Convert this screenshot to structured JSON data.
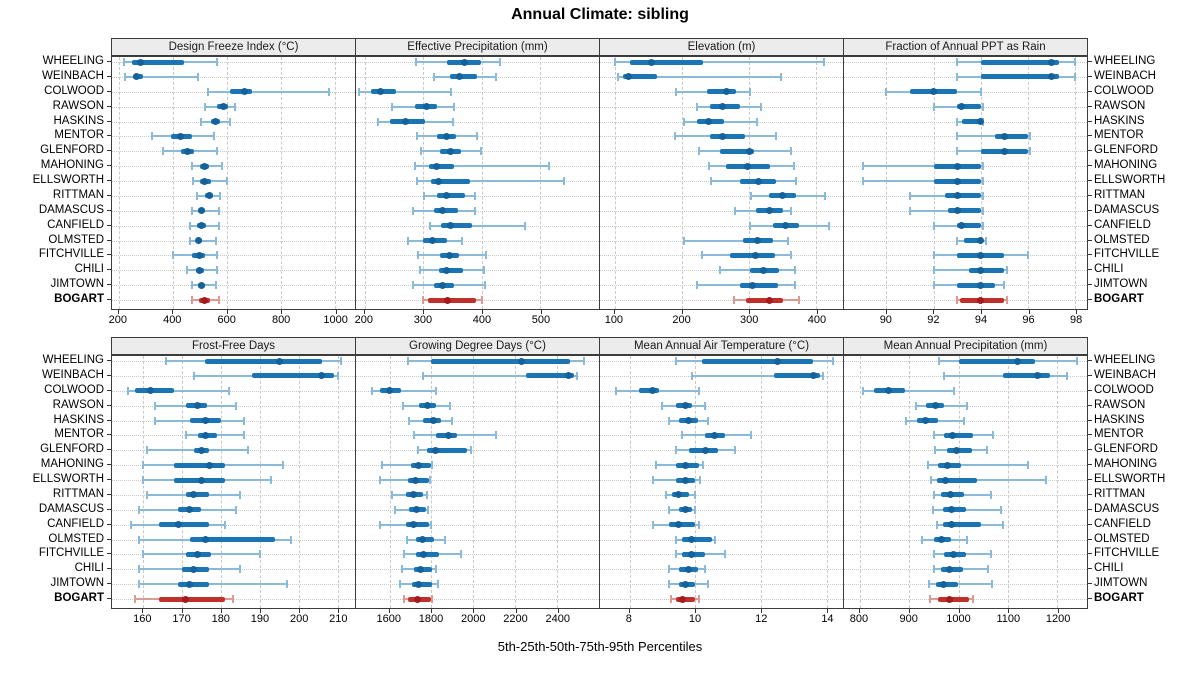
{
  "chart_data": {
    "type": "dotplot-trellis",
    "title": "Annual Climate: sibling",
    "xlabel": "5th-25th-50th-75th-95th Percentiles",
    "legend_note": "values per station are [5th, 25th, 50th, 75th, 95th] percentiles",
    "grid": "dashed vertical at ticks, dotted horizontal per station",
    "stations": [
      "WHEELING",
      "WEINBACH",
      "COLWOOD",
      "RAWSON",
      "HASKINS",
      "MENTOR",
      "GLENFORD",
      "MAHONING",
      "ELLSWORTH",
      "RITTMAN",
      "DAMASCUS",
      "CANFIELD",
      "OLMSTED",
      "FITCHVILLE",
      "CHILI",
      "JIMTOWN",
      "BOGART"
    ],
    "highlight_station": "BOGART",
    "colors": {
      "series_main": "#1b74b3",
      "series_light": "#8ab9da",
      "series_dot": "#15629b",
      "highlight_main": "#c02f2a",
      "highlight_light": "#dd9a92",
      "highlight_dot": "#a31b1f",
      "strip_bg": "#ececec",
      "grid": "#c9c9c9",
      "border": "#3c3c3c"
    },
    "panels": [
      {
        "title": "Design Freeze Index (°C)",
        "row": 0,
        "col": 0,
        "xlim": [
          175,
          1075
        ],
        "ticks": [
          200,
          400,
          600,
          800,
          1000
        ],
        "values": [
          [
            218,
            248,
            280,
            440,
            565
          ],
          [
            224,
            252,
            267,
            290,
            494
          ],
          [
            530,
            612,
            665,
            695,
            980
          ],
          [
            518,
            565,
            588,
            606,
            629
          ],
          [
            506,
            541,
            560,
            575,
            612
          ],
          [
            324,
            394,
            429,
            471,
            553
          ],
          [
            365,
            430,
            453,
            480,
            565
          ],
          [
            471,
            500,
            518,
            535,
            582
          ],
          [
            476,
            500,
            518,
            540,
            600
          ],
          [
            488,
            520,
            535,
            550,
            576
          ],
          [
            471,
            495,
            506,
            520,
            571
          ],
          [
            465,
            490,
            506,
            525,
            571
          ],
          [
            465,
            485,
            494,
            510,
            559
          ],
          [
            400,
            470,
            500,
            520,
            565
          ],
          [
            453,
            485,
            500,
            515,
            565
          ],
          [
            471,
            495,
            506,
            520,
            559
          ],
          [
            471,
            497,
            518,
            537,
            571
          ]
        ]
      },
      {
        "title": "Effective Precipitation (mm)",
        "row": 0,
        "col": 1,
        "xlim": [
          185,
          600
        ],
        "ticks": [
          200,
          300,
          400,
          500
        ],
        "values": [
          [
            287,
            340,
            371,
            399,
            431
          ],
          [
            318,
            345,
            362,
            391,
            424
          ],
          [
            190,
            211,
            227,
            254,
            347
          ],
          [
            247,
            286,
            306,
            324,
            352
          ],
          [
            223,
            243,
            270,
            302,
            351
          ],
          [
            290,
            324,
            340,
            356,
            391
          ],
          [
            296,
            329,
            346,
            364,
            399
          ],
          [
            285,
            310,
            323,
            353,
            515
          ],
          [
            289,
            313,
            326,
            380,
            540
          ],
          [
            301,
            324,
            339,
            372,
            388
          ],
          [
            283,
            318,
            333,
            359,
            388
          ],
          [
            312,
            330,
            346,
            383,
            474
          ],
          [
            273,
            299,
            316,
            340,
            366
          ],
          [
            291,
            329,
            345,
            361,
            407
          ],
          [
            294,
            326,
            340,
            367,
            404
          ],
          [
            282,
            318,
            332,
            353,
            405
          ],
          [
            300,
            308,
            342,
            390,
            401
          ]
        ]
      },
      {
        "title": "Elevation (m)",
        "row": 0,
        "col": 2,
        "xlim": [
          78,
          440
        ],
        "ticks": [
          100,
          200,
          300,
          400
        ],
        "values": [
          [
            101,
            122,
            155,
            231,
            411
          ],
          [
            105,
            112,
            120,
            163,
            348
          ],
          [
            191,
            237,
            266,
            281,
            302
          ],
          [
            222,
            242,
            261,
            286,
            318
          ],
          [
            203,
            222,
            239,
            262,
            312
          ],
          [
            189,
            242,
            261,
            294,
            340
          ],
          [
            226,
            257,
            300,
            308,
            363
          ],
          [
            240,
            265,
            298,
            331,
            367
          ],
          [
            244,
            286,
            314,
            340,
            370
          ],
          [
            303,
            330,
            350,
            370,
            413
          ],
          [
            279,
            311,
            330,
            350,
            362
          ],
          [
            301,
            335,
            354,
            375,
            419
          ],
          [
            203,
            291,
            313,
            335,
            358
          ],
          [
            230,
            271,
            310,
            338,
            363
          ],
          [
            257,
            301,
            321,
            345,
            368
          ],
          [
            222,
            286,
            305,
            343,
            368
          ],
          [
            278,
            295,
            330,
            350,
            375
          ]
        ]
      },
      {
        "title": "Fraction of Annual PPT as Rain",
        "row": 0,
        "col": 3,
        "xlim": [
          88.2,
          98.5
        ],
        "ticks": [
          90,
          92,
          94,
          96,
          98
        ],
        "values": [
          [
            93,
            94,
            97,
            97.3,
            98
          ],
          [
            93,
            94,
            97,
            97.3,
            98
          ],
          [
            90,
            91,
            92,
            93,
            94
          ],
          [
            92,
            93,
            93.2,
            94,
            94.1
          ],
          [
            93,
            93.2,
            94,
            94,
            94.1
          ],
          [
            93,
            94.6,
            95,
            96,
            96.1
          ],
          [
            93,
            94,
            95,
            96,
            96.1
          ],
          [
            89,
            92,
            93,
            94,
            94.1
          ],
          [
            89,
            92,
            93,
            94,
            94.1
          ],
          [
            91,
            92.5,
            93,
            94,
            94.1
          ],
          [
            91,
            92.6,
            93,
            94,
            94.1
          ],
          [
            92,
            93,
            93.2,
            94,
            94.1
          ],
          [
            93,
            93.3,
            94,
            94.1,
            94.2
          ],
          [
            92,
            93,
            94,
            95,
            96
          ],
          [
            92,
            93.5,
            94,
            95,
            95.1
          ],
          [
            92,
            93,
            94,
            94.6,
            95
          ],
          [
            93,
            93.1,
            94,
            95,
            95.1
          ]
        ]
      },
      {
        "title": "Frost-Free Days",
        "row": 1,
        "col": 0,
        "xlim": [
          152,
          214.5
        ],
        "ticks": [
          160,
          170,
          180,
          190,
          200,
          210
        ],
        "values": [
          [
            166,
            176,
            195,
            206,
            211
          ],
          [
            173,
            188,
            206,
            209,
            210
          ],
          [
            156,
            158,
            162,
            168,
            182
          ],
          [
            163,
            171,
            174,
            176.5,
            184
          ],
          [
            163,
            172,
            176,
            180,
            186
          ],
          [
            171,
            174,
            176,
            179,
            186
          ],
          [
            161,
            173,
            175,
            177,
            187
          ],
          [
            160,
            168,
            177,
            181,
            196
          ],
          [
            160,
            168,
            175,
            181,
            193
          ],
          [
            161,
            171,
            173,
            177,
            185
          ],
          [
            159,
            169,
            172,
            175,
            184
          ],
          [
            157,
            164,
            169,
            177,
            181
          ],
          [
            159,
            172,
            176,
            194,
            198
          ],
          [
            160,
            171,
            174,
            177.5,
            190
          ],
          [
            159,
            170,
            173,
            177,
            185
          ],
          [
            159,
            169,
            172,
            177,
            197
          ],
          [
            158,
            164,
            171,
            181,
            183
          ]
        ]
      },
      {
        "title": "Growing Degree Days (°C)",
        "row": 1,
        "col": 1,
        "xlim": [
          1440,
          2600
        ],
        "ticks": [
          1600,
          1800,
          2000,
          2200,
          2400
        ],
        "values": [
          [
            1690,
            1800,
            2230,
            2460,
            2530
          ],
          [
            1760,
            2250,
            2455,
            2480,
            2495
          ],
          [
            1515,
            1555,
            1600,
            1655,
            1820
          ],
          [
            1664,
            1742,
            1782,
            1820,
            1890
          ],
          [
            1692,
            1758,
            1810,
            1844,
            1899
          ],
          [
            1716,
            1820,
            1883,
            1922,
            2107
          ],
          [
            1735,
            1780,
            1820,
            1970,
            1990
          ],
          [
            1566,
            1703,
            1738,
            1797,
            1802
          ],
          [
            1555,
            1688,
            1724,
            1789,
            1795
          ],
          [
            1614,
            1680,
            1716,
            1758,
            1778
          ],
          [
            1625,
            1695,
            1727,
            1774,
            1782
          ],
          [
            1555,
            1680,
            1716,
            1789,
            1797
          ],
          [
            1684,
            1727,
            1758,
            1813,
            1863
          ],
          [
            1669,
            1727,
            1763,
            1836,
            1941
          ],
          [
            1659,
            1716,
            1747,
            1805,
            1820
          ],
          [
            1649,
            1706,
            1738,
            1805,
            1831
          ],
          [
            1668,
            1690,
            1735,
            1798,
            1805
          ]
        ]
      },
      {
        "title": "Mean Annual Air Temperature (°C)",
        "row": 1,
        "col": 2,
        "xlim": [
          7.1,
          14.5
        ],
        "ticks": [
          8,
          10,
          12,
          14
        ],
        "values": [
          [
            9.4,
            10.2,
            12.5,
            13.6,
            14.2
          ],
          [
            9.9,
            12.4,
            13.6,
            13.8,
            13.9
          ],
          [
            7.6,
            8.3,
            8.7,
            8.9,
            10.1
          ],
          [
            9.0,
            9.4,
            9.7,
            9.9,
            10.3
          ],
          [
            9.2,
            9.5,
            9.8,
            10.1,
            10.4
          ],
          [
            9.6,
            10.3,
            10.6,
            10.9,
            11.7
          ],
          [
            9.4,
            9.8,
            10.3,
            10.7,
            11.2
          ],
          [
            8.8,
            9.4,
            9.7,
            10.1,
            10.25
          ],
          [
            8.7,
            9.4,
            9.7,
            10.0,
            10.15
          ],
          [
            9.1,
            9.3,
            9.5,
            9.8,
            10.0
          ],
          [
            9.2,
            9.5,
            9.7,
            9.9,
            10.0
          ],
          [
            8.7,
            9.2,
            9.5,
            10.0,
            10.1
          ],
          [
            9.4,
            9.6,
            9.9,
            10.5,
            10.6
          ],
          [
            9.4,
            9.6,
            9.9,
            10.3,
            10.9
          ],
          [
            9.2,
            9.5,
            9.8,
            10.1,
            10.3
          ],
          [
            9.2,
            9.5,
            9.7,
            10.0,
            10.4
          ],
          [
            9.25,
            9.4,
            9.6,
            10.0,
            10.1
          ]
        ]
      },
      {
        "title": "Mean Annual Precipitation (mm)",
        "row": 1,
        "col": 3,
        "xlim": [
          768,
          1260
        ],
        "ticks": [
          800,
          900,
          1000,
          1100,
          1200
        ],
        "values": [
          [
            960,
            1000,
            1120,
            1155,
            1240
          ],
          [
            970,
            1090,
            1160,
            1185,
            1220
          ],
          [
            806,
            828,
            859,
            891,
            991
          ],
          [
            913,
            935,
            953,
            971,
            1018
          ],
          [
            893,
            915,
            933,
            958,
            1010
          ],
          [
            951,
            970,
            988,
            1030,
            1069
          ],
          [
            953,
            977,
            995,
            1028,
            1057
          ],
          [
            939,
            958,
            977,
            1005,
            1141
          ],
          [
            945,
            957,
            973,
            1037,
            1176
          ],
          [
            951,
            965,
            983,
            1010,
            1065
          ],
          [
            948,
            968,
            986,
            1015,
            1086
          ],
          [
            957,
            968,
            985,
            1045,
            1089
          ],
          [
            925,
            950,
            966,
            985,
            1018
          ],
          [
            950,
            971,
            990,
            1015,
            1066
          ],
          [
            951,
            965,
            981,
            1008,
            1059
          ],
          [
            941,
            955,
            970,
            998,
            1068
          ],
          [
            943,
            958,
            981,
            1022,
            1030
          ]
        ]
      }
    ]
  }
}
